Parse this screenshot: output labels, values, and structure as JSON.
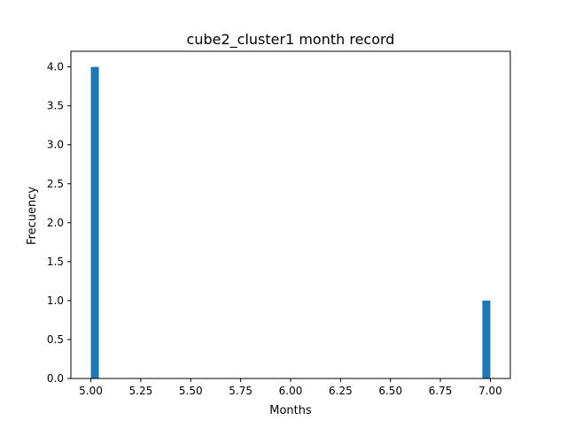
{
  "chart_data": {
    "type": "bar",
    "title": "cube2_cluster1 month record",
    "xlabel": "Months",
    "ylabel": "Frecuency",
    "xlim": [
      4.9,
      7.1
    ],
    "ylim": [
      0,
      4.2
    ],
    "x_ticks": [
      "5.00",
      "5.25",
      "5.50",
      "5.75",
      "6.00",
      "6.25",
      "6.50",
      "6.75",
      "7.00"
    ],
    "y_ticks": [
      "0.0",
      "0.5",
      "1.0",
      "1.5",
      "2.0",
      "2.5",
      "3.0",
      "3.5",
      "4.0"
    ],
    "bin_width": 0.04,
    "bars": [
      {
        "x_start": 5.0,
        "x_end": 5.04,
        "value": 4
      },
      {
        "x_start": 6.96,
        "x_end": 7.0,
        "value": 1
      }
    ],
    "bar_color": "#1f77b4",
    "grid": false,
    "legend": "none"
  }
}
